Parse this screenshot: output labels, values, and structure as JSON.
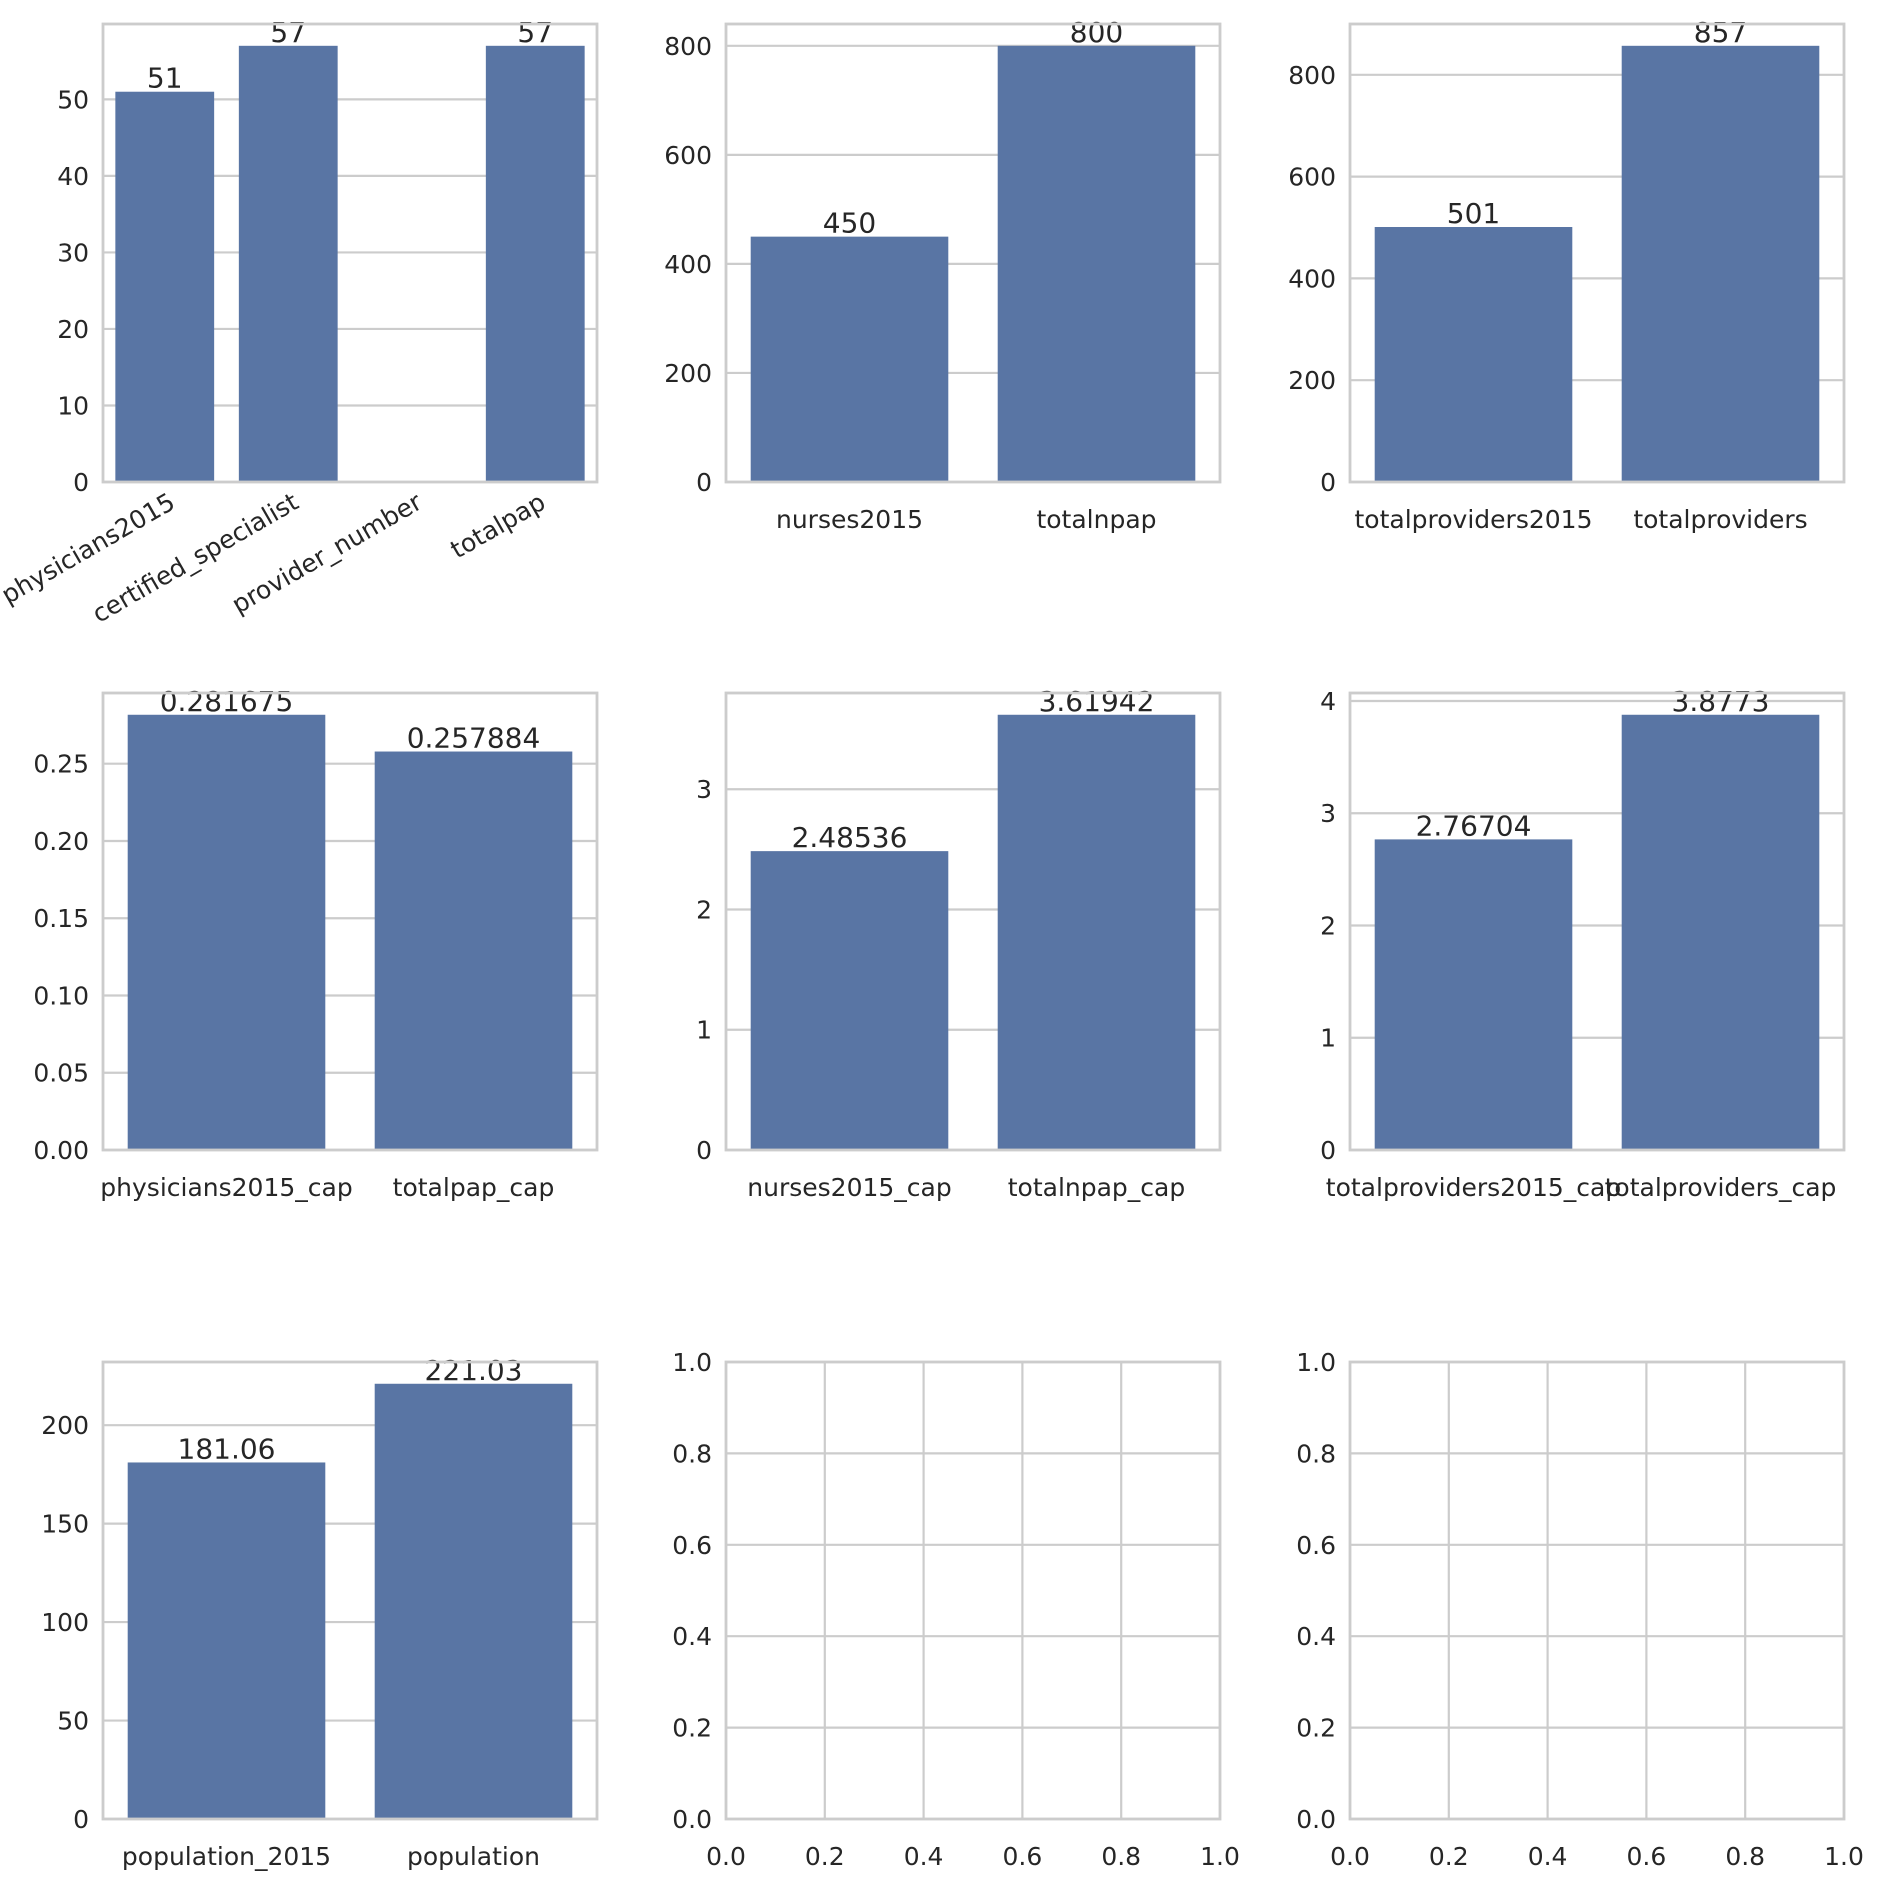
{
  "colors": {
    "bar": "#5975a4",
    "grid": "#cccccc",
    "text": "#262626",
    "background": "#ffffff"
  },
  "chart_data": [
    {
      "type": "bar",
      "categories": [
        "physicians2015",
        "certified_specialist",
        "provider_number",
        "totalpap"
      ],
      "values": [
        51,
        57,
        null,
        57
      ],
      "bar_labels": [
        "51",
        "57",
        "",
        "57"
      ],
      "ylim": [
        0,
        59.85
      ],
      "yticks": [
        0,
        10,
        20,
        30,
        40,
        50
      ],
      "ytick_labels": [
        "0",
        "10",
        "20",
        "30",
        "40",
        "50"
      ],
      "xtick_rotation": 30,
      "grid": true
    },
    {
      "type": "bar",
      "categories": [
        "nurses2015",
        "totalnpap"
      ],
      "values": [
        450,
        800
      ],
      "bar_labels": [
        "450",
        "800"
      ],
      "ylim": [
        0,
        840
      ],
      "yticks": [
        0,
        200,
        400,
        600,
        800
      ],
      "ytick_labels": [
        "0",
        "200",
        "400",
        "600",
        "800"
      ],
      "grid": true
    },
    {
      "type": "bar",
      "categories": [
        "totalproviders2015",
        "totalproviders"
      ],
      "values": [
        501,
        857
      ],
      "bar_labels": [
        "501",
        "857"
      ],
      "ylim": [
        0,
        899.85
      ],
      "yticks": [
        0,
        200,
        400,
        600,
        800
      ],
      "ytick_labels": [
        "0",
        "200",
        "400",
        "600",
        "800"
      ],
      "grid": true
    },
    {
      "type": "bar",
      "categories": [
        "physicians2015_cap",
        "totalpap_cap"
      ],
      "values": [
        0.281675,
        0.257884
      ],
      "bar_labels": [
        "0.281675",
        "0.257884"
      ],
      "ylim": [
        0,
        0.29576
      ],
      "yticks": [
        0,
        0.05,
        0.1,
        0.15,
        0.2,
        0.25
      ],
      "ytick_labels": [
        "0.00",
        "0.05",
        "0.10",
        "0.15",
        "0.20",
        "0.25"
      ],
      "grid": true
    },
    {
      "type": "bar",
      "categories": [
        "nurses2015_cap",
        "totalnpap_cap"
      ],
      "values": [
        2.48536,
        3.61942
      ],
      "bar_labels": [
        "2.48536",
        "3.61942"
      ],
      "ylim": [
        0,
        3.8004
      ],
      "yticks": [
        0,
        1,
        2,
        3
      ],
      "ytick_labels": [
        "0",
        "1",
        "2",
        "3"
      ],
      "grid": true
    },
    {
      "type": "bar",
      "categories": [
        "totalproviders2015_cap",
        "totalproviders_cap"
      ],
      "values": [
        2.76704,
        3.8773
      ],
      "bar_labels": [
        "2.76704",
        "3.8773"
      ],
      "ylim": [
        0,
        4.07117
      ],
      "yticks": [
        0,
        1,
        2,
        3,
        4
      ],
      "ytick_labels": [
        "0",
        "1",
        "2",
        "3",
        "4"
      ],
      "grid": true
    },
    {
      "type": "bar",
      "categories": [
        "population_2015",
        "population"
      ],
      "values": [
        181.06,
        221.03
      ],
      "bar_labels": [
        "181.06",
        "221.03"
      ],
      "ylim": [
        0,
        232.08
      ],
      "yticks": [
        0,
        50,
        100,
        150,
        200
      ],
      "ytick_labels": [
        "0",
        "50",
        "100",
        "150",
        "200"
      ],
      "grid": true
    },
    {
      "type": "empty",
      "xlim": [
        0,
        1
      ],
      "ylim": [
        0,
        1
      ],
      "xticks": [
        0,
        0.2,
        0.4,
        0.6,
        0.8,
        1.0
      ],
      "xtick_labels": [
        "0.0",
        "0.2",
        "0.4",
        "0.6",
        "0.8",
        "1.0"
      ],
      "yticks": [
        0,
        0.2,
        0.4,
        0.6,
        0.8,
        1.0
      ],
      "ytick_labels": [
        "0.0",
        "0.2",
        "0.4",
        "0.6",
        "0.8",
        "1.0"
      ],
      "grid": true
    },
    {
      "type": "empty",
      "xlim": [
        0,
        1
      ],
      "ylim": [
        0,
        1
      ],
      "xticks": [
        0,
        0.2,
        0.4,
        0.6,
        0.8,
        1.0
      ],
      "xtick_labels": [
        "0.0",
        "0.2",
        "0.4",
        "0.6",
        "0.8",
        "1.0"
      ],
      "yticks": [
        0,
        0.2,
        0.4,
        0.6,
        0.8,
        1.0
      ],
      "ytick_labels": [
        "0.0",
        "0.2",
        "0.4",
        "0.6",
        "0.8",
        "1.0"
      ],
      "grid": true
    }
  ]
}
